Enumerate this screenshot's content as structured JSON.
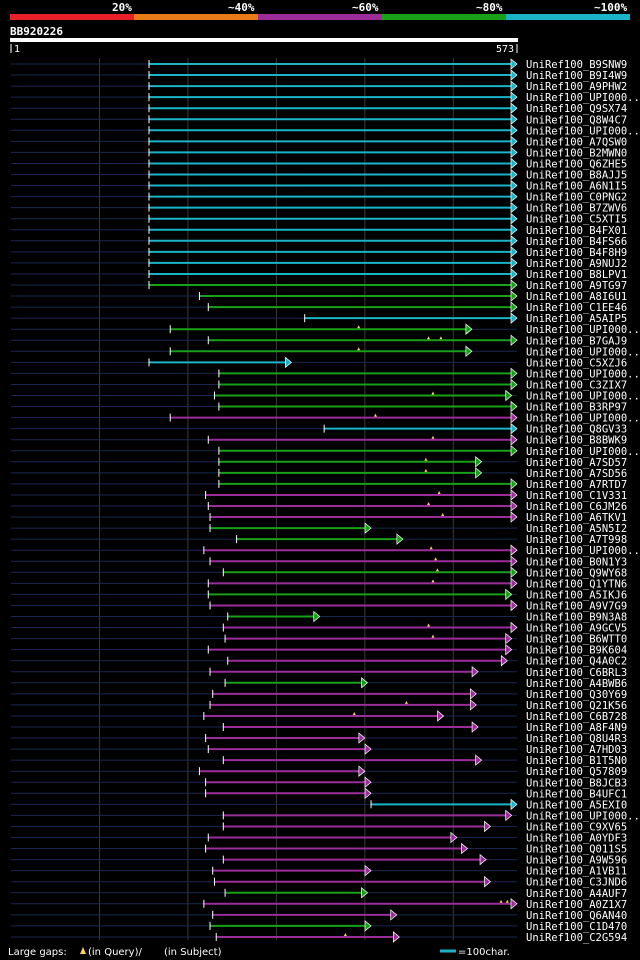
{
  "chart_data": {
    "type": "alignment-overview",
    "query": {
      "id": "BB920226",
      "start": 1,
      "end": 573,
      "start_label": "1",
      "end_label": "573"
    },
    "identity_legend": [
      {
        "label": "20%",
        "color": "#e8202a"
      },
      {
        "label": "~40%",
        "color": "#e87a18"
      },
      {
        "label": "~60%",
        "color": "#9b2d9b"
      },
      {
        "label": "~80%",
        "color": "#18a018"
      },
      {
        "label": "~100%",
        "color": "#1ab4c8"
      }
    ],
    "footer": {
      "gaps_prefix": "Large gaps:",
      "gaps_query": "(in Query)/",
      "gaps_subject": "(in Subject)",
      "scale_label": "=100char."
    },
    "hits": [
      {
        "name": "UniRef100_B9SNW9",
        "start": 157,
        "end": 573,
        "color": "cyan",
        "gaps": []
      },
      {
        "name": "UniRef100_B9I4W9",
        "start": 157,
        "end": 573,
        "color": "cyan",
        "gaps": []
      },
      {
        "name": "UniRef100_A9PHW2",
        "start": 157,
        "end": 573,
        "color": "cyan",
        "gaps": []
      },
      {
        "name": "UniRef100_UPI000..",
        "start": 157,
        "end": 573,
        "color": "cyan",
        "gaps": []
      },
      {
        "name": "UniRef100_Q9SX74",
        "start": 157,
        "end": 573,
        "color": "cyan",
        "gaps": []
      },
      {
        "name": "UniRef100_Q8W4C7",
        "start": 157,
        "end": 573,
        "color": "cyan",
        "gaps": []
      },
      {
        "name": "UniRef100_UPI000..",
        "start": 157,
        "end": 573,
        "color": "cyan",
        "gaps": []
      },
      {
        "name": "UniRef100_A7QSW0",
        "start": 157,
        "end": 573,
        "color": "cyan",
        "gaps": []
      },
      {
        "name": "UniRef100_B2MWN0",
        "start": 157,
        "end": 573,
        "color": "cyan",
        "gaps": []
      },
      {
        "name": "UniRef100_Q6ZHE5",
        "start": 157,
        "end": 573,
        "color": "cyan",
        "gaps": []
      },
      {
        "name": "UniRef100_B8AJJ5",
        "start": 157,
        "end": 573,
        "color": "cyan",
        "gaps": []
      },
      {
        "name": "UniRef100_A6N1I5",
        "start": 157,
        "end": 573,
        "color": "cyan",
        "gaps": []
      },
      {
        "name": "UniRef100_C0PNG2",
        "start": 157,
        "end": 573,
        "color": "cyan",
        "gaps": []
      },
      {
        "name": "UniRef100_B7ZWV6",
        "start": 157,
        "end": 573,
        "color": "cyan",
        "gaps": []
      },
      {
        "name": "UniRef100_C5XTI5",
        "start": 157,
        "end": 573,
        "color": "cyan",
        "gaps": []
      },
      {
        "name": "UniRef100_B4FX01",
        "start": 157,
        "end": 573,
        "color": "cyan",
        "gaps": []
      },
      {
        "name": "UniRef100_B4FS66",
        "start": 157,
        "end": 573,
        "color": "cyan",
        "gaps": []
      },
      {
        "name": "UniRef100_B4F8H9",
        "start": 157,
        "end": 573,
        "color": "cyan",
        "gaps": []
      },
      {
        "name": "UniRef100_A9NUJ2",
        "start": 157,
        "end": 573,
        "color": "cyan",
        "gaps": []
      },
      {
        "name": "UniRef100_B8LPV1",
        "start": 157,
        "end": 573,
        "color": "cyan",
        "gaps": []
      },
      {
        "name": "UniRef100_A9TG97",
        "start": 157,
        "end": 573,
        "color": "green",
        "gaps": []
      },
      {
        "name": "UniRef100_A8I6U1",
        "start": 214,
        "end": 573,
        "color": "green",
        "gaps": []
      },
      {
        "name": "UniRef100_C1EE46",
        "start": 224,
        "end": 573,
        "color": "green",
        "gaps": []
      },
      {
        "name": "UniRef100_A5AIP5",
        "start": 333,
        "end": 573,
        "color": "cyan",
        "gaps": []
      },
      {
        "name": "UniRef100_UPI000..",
        "start": 181,
        "end": 522,
        "color": "green",
        "gaps": [
          394
        ]
      },
      {
        "name": "UniRef100_B7GAJ9",
        "start": 224,
        "end": 573,
        "color": "green",
        "gaps": [
          473,
          487
        ]
      },
      {
        "name": "UniRef100_UPI000..",
        "start": 181,
        "end": 522,
        "color": "green",
        "gaps": [
          394
        ]
      },
      {
        "name": "UniRef100_C5XZJ6",
        "start": 157,
        "end": 318,
        "color": "cyan",
        "gaps": []
      },
      {
        "name": "UniRef100_UPI000..",
        "start": 236,
        "end": 573,
        "color": "green",
        "gaps": []
      },
      {
        "name": "UniRef100_C3ZIX7",
        "start": 236,
        "end": 573,
        "color": "green",
        "gaps": []
      },
      {
        "name": "UniRef100_UPI000..",
        "start": 231,
        "end": 567,
        "color": "green",
        "gaps": [
          478
        ]
      },
      {
        "name": "UniRef100_B3RP97",
        "start": 236,
        "end": 573,
        "color": "green",
        "gaps": []
      },
      {
        "name": "UniRef100_UPI000..",
        "start": 181,
        "end": 573,
        "color": "purple",
        "gaps": [
          413
        ]
      },
      {
        "name": "UniRef100_Q8GV33",
        "start": 355,
        "end": 573,
        "color": "cyan",
        "gaps": []
      },
      {
        "name": "UniRef100_B8BWK9",
        "start": 224,
        "end": 573,
        "color": "purple",
        "gaps": [
          478
        ]
      },
      {
        "name": "UniRef100_UPI000..",
        "start": 236,
        "end": 573,
        "color": "green",
        "gaps": []
      },
      {
        "name": "UniRef100_A7SD57",
        "start": 236,
        "end": 533,
        "color": "green",
        "gaps": [
          470
        ]
      },
      {
        "name": "UniRef100_A7SD56",
        "start": 236,
        "end": 533,
        "color": "green",
        "gaps": [
          470
        ]
      },
      {
        "name": "UniRef100_A7RTD7",
        "start": 236,
        "end": 573,
        "color": "green",
        "gaps": []
      },
      {
        "name": "UniRef100_C1V331",
        "start": 221,
        "end": 573,
        "color": "purple",
        "gaps": [
          485
        ]
      },
      {
        "name": "UniRef100_C6JM26",
        "start": 224,
        "end": 573,
        "color": "purple",
        "gaps": [
          473
        ]
      },
      {
        "name": "UniRef100_A6TKV1",
        "start": 226,
        "end": 573,
        "color": "purple",
        "gaps": [
          489
        ]
      },
      {
        "name": "UniRef100_A5N5I2",
        "start": 226,
        "end": 408,
        "color": "green",
        "gaps": []
      },
      {
        "name": "UniRef100_A7T998",
        "start": 256,
        "end": 444,
        "color": "green",
        "gaps": []
      },
      {
        "name": "UniRef100_UPI000..",
        "start": 219,
        "end": 573,
        "color": "purple",
        "gaps": [
          476
        ]
      },
      {
        "name": "UniRef100_B0N1Y3",
        "start": 226,
        "end": 573,
        "color": "purple",
        "gaps": [
          481
        ]
      },
      {
        "name": "UniRef100_Q9WY68",
        "start": 241,
        "end": 573,
        "color": "green",
        "gaps": [
          483
        ]
      },
      {
        "name": "UniRef100_Q1YTN6",
        "start": 224,
        "end": 573,
        "color": "purple",
        "gaps": [
          478
        ]
      },
      {
        "name": "UniRef100_A5IKJ6",
        "start": 224,
        "end": 567,
        "color": "green",
        "gaps": []
      },
      {
        "name": "UniRef100_A9V7G9",
        "start": 226,
        "end": 573,
        "color": "purple",
        "gaps": []
      },
      {
        "name": "UniRef100_B9N3A8",
        "start": 246,
        "end": 350,
        "color": "green",
        "gaps": []
      },
      {
        "name": "UniRef100_A9GCV5",
        "start": 241,
        "end": 573,
        "color": "purple",
        "gaps": [
          473
        ]
      },
      {
        "name": "UniRef100_B6WTT0",
        "start": 243,
        "end": 567,
        "color": "purple",
        "gaps": [
          478
        ]
      },
      {
        "name": "UniRef100_B9K604",
        "start": 224,
        "end": 567,
        "color": "purple",
        "gaps": []
      },
      {
        "name": "UniRef100_Q4A0C2",
        "start": 246,
        "end": 562,
        "color": "purple",
        "gaps": []
      },
      {
        "name": "UniRef100_C6BRL3",
        "start": 226,
        "end": 529,
        "color": "purple",
        "gaps": []
      },
      {
        "name": "UniRef100_A4BWB6",
        "start": 243,
        "end": 404,
        "color": "green",
        "gaps": []
      },
      {
        "name": "UniRef100_Q30Y69",
        "start": 229,
        "end": 527,
        "color": "purple",
        "gaps": []
      },
      {
        "name": "UniRef100_Q21K56",
        "start": 226,
        "end": 527,
        "color": "purple",
        "gaps": [
          448
        ]
      },
      {
        "name": "UniRef100_C6B728",
        "start": 219,
        "end": 490,
        "color": "purple",
        "gaps": [
          389
        ]
      },
      {
        "name": "UniRef100_A8F4N9",
        "start": 241,
        "end": 529,
        "color": "purple",
        "gaps": []
      },
      {
        "name": "UniRef100_Q8U4R3",
        "start": 221,
        "end": 401,
        "color": "purple",
        "gaps": []
      },
      {
        "name": "UniRef100_A7HD03",
        "start": 224,
        "end": 408,
        "color": "purple",
        "gaps": []
      },
      {
        "name": "UniRef100_B1T5N0",
        "start": 241,
        "end": 533,
        "color": "purple",
        "gaps": []
      },
      {
        "name": "UniRef100_Q57809",
        "start": 214,
        "end": 401,
        "color": "purple",
        "gaps": []
      },
      {
        "name": "UniRef100_B8JCB3",
        "start": 221,
        "end": 408,
        "color": "purple",
        "gaps": []
      },
      {
        "name": "UniRef100_B4UFC1",
        "start": 221,
        "end": 408,
        "color": "purple",
        "gaps": []
      },
      {
        "name": "UniRef100_A5EXI0",
        "start": 408,
        "end": 573,
        "color": "cyan",
        "gaps": []
      },
      {
        "name": "UniRef100_UPI000..",
        "start": 241,
        "end": 567,
        "color": "purple",
        "gaps": []
      },
      {
        "name": "UniRef100_C9XV65",
        "start": 241,
        "end": 543,
        "color": "purple",
        "gaps": []
      },
      {
        "name": "UniRef100_A0YDF3",
        "start": 224,
        "end": 505,
        "color": "purple",
        "gaps": []
      },
      {
        "name": "UniRef100_Q011S5",
        "start": 221,
        "end": 517,
        "color": "purple",
        "gaps": []
      },
      {
        "name": "UniRef100_A9W596",
        "start": 241,
        "end": 538,
        "color": "purple",
        "gaps": []
      },
      {
        "name": "UniRef100_A1VB11",
        "start": 229,
        "end": 408,
        "color": "purple",
        "gaps": []
      },
      {
        "name": "UniRef100_C3JND6",
        "start": 231,
        "end": 543,
        "color": "purple",
        "gaps": []
      },
      {
        "name": "UniRef100_A4AUF7",
        "start": 243,
        "end": 404,
        "color": "green",
        "gaps": []
      },
      {
        "name": "UniRef100_A0Z1X7",
        "start": 219,
        "end": 573,
        "color": "purple",
        "gaps": [
          555,
          562
        ]
      },
      {
        "name": "UniRef100_Q6AN40",
        "start": 229,
        "end": 437,
        "color": "purple",
        "gaps": []
      },
      {
        "name": "UniRef100_C1D470",
        "start": 226,
        "end": 408,
        "color": "green",
        "gaps": []
      },
      {
        "name": "UniRef100_C2G594",
        "start": 233,
        "end": 440,
        "color": "purple",
        "gaps": [
          379
        ]
      }
    ]
  }
}
